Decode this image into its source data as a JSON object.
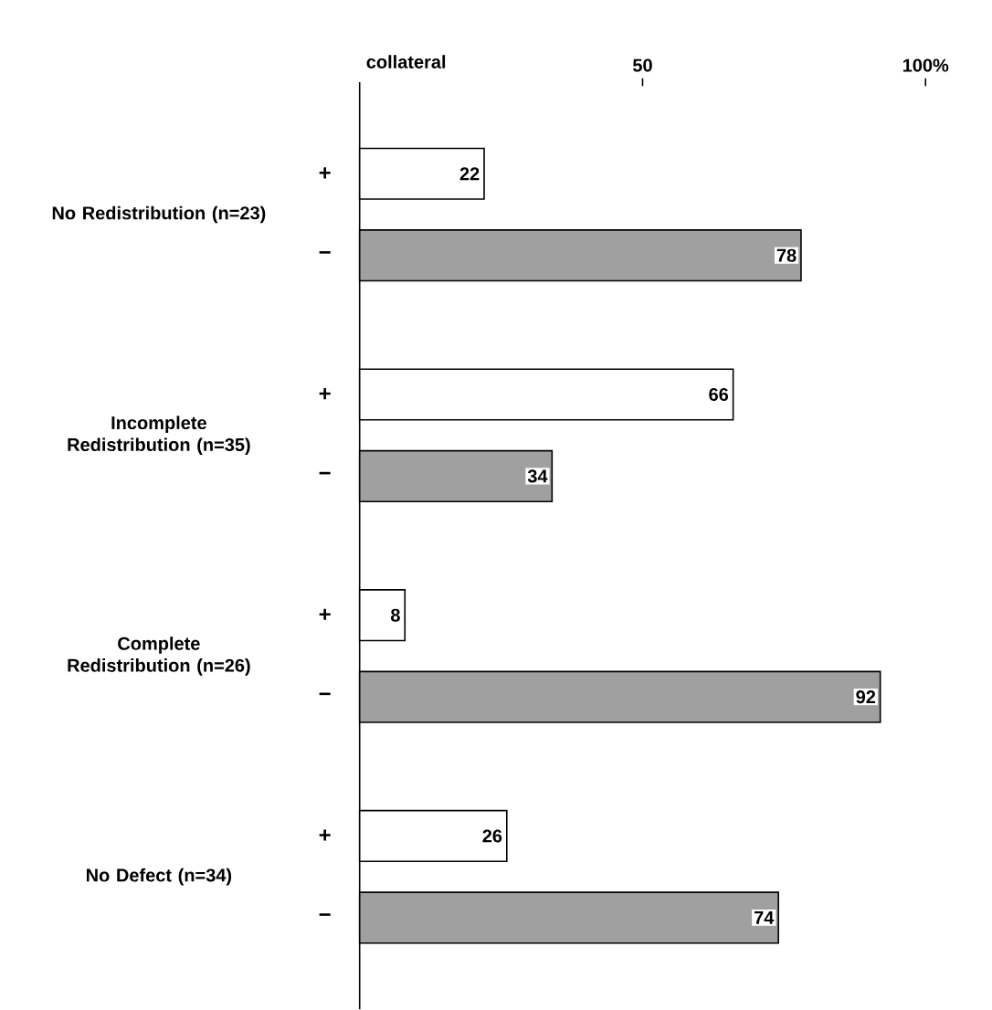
{
  "chart_data": {
    "type": "bar",
    "orientation": "horizontal",
    "xlabel": "collateral",
    "categories": [
      "No Redistribution (n=23)",
      "Incomplete Redistribution (n=35)",
      "Complete Redistribution (n=26)",
      "No Defect (n=34)"
    ],
    "series": [
      {
        "name": "+",
        "color": "#ffffff",
        "values": [
          22,
          66,
          8,
          26
        ]
      },
      {
        "name": "−",
        "color": "#a0a0a0",
        "values": [
          78,
          34,
          92,
          74
        ]
      }
    ],
    "xlim": [
      0,
      100
    ],
    "xticks": [
      50,
      {
        "value": 100,
        "label": "100%"
      }
    ],
    "data_labels": true
  }
}
